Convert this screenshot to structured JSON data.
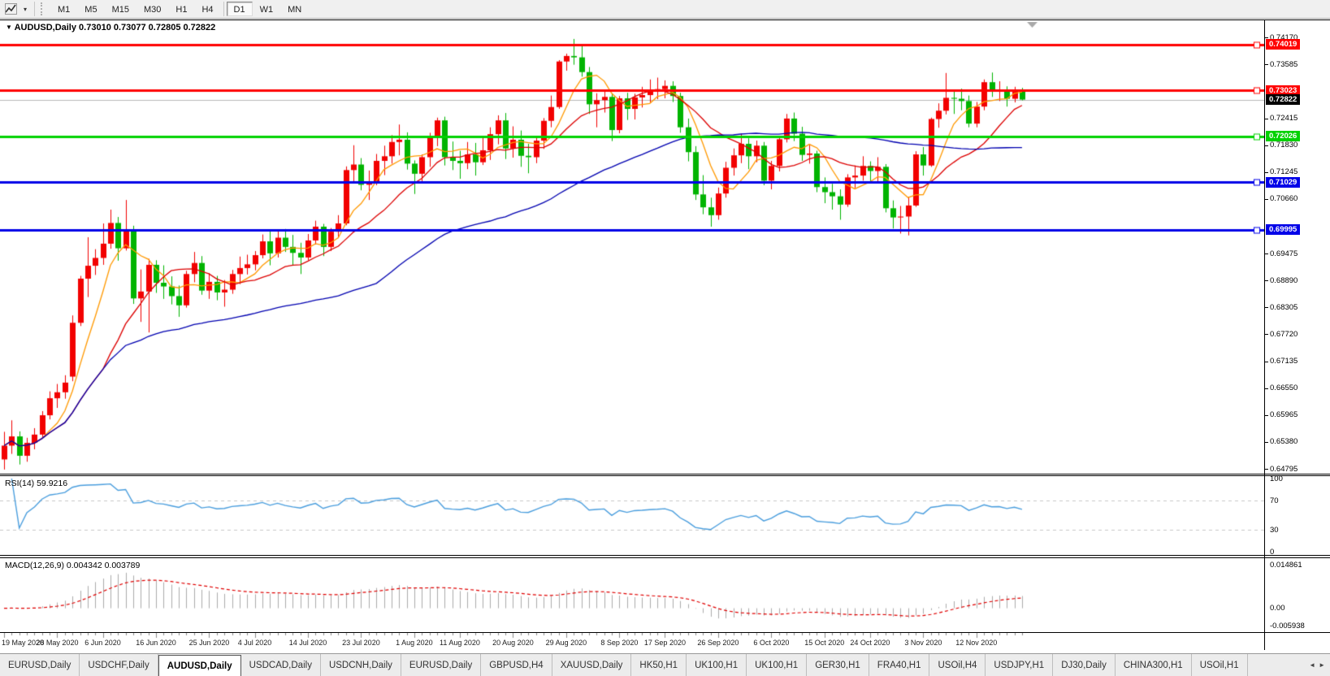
{
  "toolbar": {
    "timeframes": [
      "M1",
      "M5",
      "M15",
      "M30",
      "H1",
      "H4",
      "D1",
      "W1",
      "MN"
    ],
    "active_timeframe": "D1"
  },
  "chart": {
    "title_marker": "▼",
    "symbol_period": "AUDUSD,Daily",
    "ohlc_line": "0.73010 0.73077 0.72805 0.72822"
  },
  "rsi_panel": {
    "label": "RSI(14) 59.9216"
  },
  "macd_panel": {
    "label": "MACD(12,26,9) 0.004342 0.003789"
  },
  "chart_data": {
    "type": "candlestick",
    "instrument": "AUDUSD",
    "timeframe": "Daily",
    "up_color": "#f20000",
    "down_color": "#00b400",
    "price_range": [
      0.6469,
      0.7451
    ],
    "y_ticks": [
      0.7417,
      0.73585,
      0.72415,
      0.7183,
      0.71245,
      0.7066,
      0.69475,
      0.6889,
      0.68305,
      0.6772,
      0.67135,
      0.6655,
      0.65965,
      0.6538,
      0.64795
    ],
    "hlines": [
      {
        "price": 0.74019,
        "color": "#ff0000",
        "label": "0.74019"
      },
      {
        "price": 0.73023,
        "color": "#ff0000",
        "label": "0.73023"
      },
      {
        "price": 0.72026,
        "color": "#00d200",
        "label": "0.72026"
      },
      {
        "price": 0.71029,
        "color": "#0000e8",
        "label": "0.71029"
      },
      {
        "price": 0.69995,
        "color": "#0000e8",
        "label": "0.69995"
      }
    ],
    "current_price": {
      "price": 0.72822,
      "label": "0.72822",
      "line_color": "#b8b8b8",
      "badge_color": "#000000"
    },
    "moving_averages": [
      {
        "period": 6,
        "color": "#ff9900"
      },
      {
        "period": 14,
        "color": "#dd0000"
      },
      {
        "period": 50,
        "color": "#0000b0"
      }
    ],
    "rsi": {
      "period": 14,
      "last": 59.9216,
      "color": "#4a9ede",
      "scale": [
        {
          "v": 100,
          "label": "100"
        },
        {
          "v": 70,
          "label": "70"
        },
        {
          "v": 30,
          "label": "30"
        },
        {
          "v": 0,
          "label": "0"
        }
      ],
      "level_lines": [
        70,
        30
      ]
    },
    "macd": {
      "fast": 12,
      "slow": 26,
      "signal": 9,
      "last_main": 0.004342,
      "last_signal": 0.003789,
      "hist_color": "#ababab",
      "signal_color": "#e00000",
      "scale": [
        {
          "v": 0.014861,
          "label": "0.014861"
        },
        {
          "v": 0.0,
          "label": "0.00"
        },
        {
          "v": -0.005938,
          "label": "-0.005938"
        }
      ],
      "scale_max": 0.014861,
      "scale_min": -0.005938
    },
    "x_labels": [
      "19 May 2020",
      "28 May 2020",
      "6 Jun 2020",
      "16 Jun 2020",
      "25 Jun 2020",
      "4 Jul 2020",
      "14 Jul 2020",
      "23 Jul 2020",
      "1 Aug 2020",
      "11 Aug 2020",
      "20 Aug 2020",
      "29 Aug 2020",
      "8 Sep 2020",
      "17 Sep 2020",
      "26 Sep 2020",
      "6 Oct 2020",
      "15 Oct 2020",
      "24 Oct 2020",
      "3 Nov 2020",
      "12 Nov 2020"
    ],
    "x_label_bars": [
      0,
      7,
      13,
      20,
      27,
      33,
      40,
      47,
      54,
      60,
      67,
      74,
      81,
      87,
      94,
      101,
      108,
      114,
      121,
      128
    ],
    "ohlc": [
      [
        0.65,
        0.656,
        0.6478,
        0.653
      ],
      [
        0.653,
        0.6585,
        0.6512,
        0.655
      ],
      [
        0.655,
        0.6561,
        0.6489,
        0.6508
      ],
      [
        0.6508,
        0.6547,
        0.6495,
        0.6536
      ],
      [
        0.6536,
        0.6568,
        0.6522,
        0.6554
      ],
      [
        0.6554,
        0.6605,
        0.6548,
        0.6596
      ],
      [
        0.6596,
        0.6648,
        0.6587,
        0.6633
      ],
      [
        0.6633,
        0.6664,
        0.6612,
        0.6646
      ],
      [
        0.6646,
        0.6683,
        0.6632,
        0.6667
      ],
      [
        0.668,
        0.6813,
        0.667,
        0.6797
      ],
      [
        0.6797,
        0.6899,
        0.679,
        0.6893
      ],
      [
        0.6893,
        0.6983,
        0.6853,
        0.6921
      ],
      [
        0.6921,
        0.6957,
        0.6901,
        0.6938
      ],
      [
        0.6938,
        0.7013,
        0.6923,
        0.6969
      ],
      [
        0.6969,
        0.7043,
        0.6958,
        0.7014
      ],
      [
        0.7014,
        0.7027,
        0.6932,
        0.6959
      ],
      [
        0.6959,
        0.7064,
        0.6954,
        0.7
      ],
      [
        0.7,
        0.7008,
        0.6838,
        0.685
      ],
      [
        0.685,
        0.6913,
        0.6799,
        0.6865
      ],
      [
        0.6865,
        0.6936,
        0.6776,
        0.6923
      ],
      [
        0.6923,
        0.6933,
        0.6862,
        0.6884
      ],
      [
        0.6884,
        0.6922,
        0.6849,
        0.6876
      ],
      [
        0.6876,
        0.6898,
        0.6837,
        0.6855
      ],
      [
        0.6855,
        0.6878,
        0.681,
        0.6835
      ],
      [
        0.6835,
        0.691,
        0.683,
        0.6903
      ],
      [
        0.6903,
        0.6951,
        0.6885,
        0.6927
      ],
      [
        0.6927,
        0.6942,
        0.6858,
        0.6867
      ],
      [
        0.6867,
        0.6905,
        0.6849,
        0.6886
      ],
      [
        0.6886,
        0.6899,
        0.6846,
        0.6863
      ],
      [
        0.6863,
        0.689,
        0.6832,
        0.6869
      ],
      [
        0.6869,
        0.6912,
        0.686,
        0.6903
      ],
      [
        0.6903,
        0.6941,
        0.6881,
        0.6916
      ],
      [
        0.6916,
        0.6945,
        0.6902,
        0.6924
      ],
      [
        0.6924,
        0.6953,
        0.6911,
        0.6944
      ],
      [
        0.6944,
        0.6989,
        0.6937,
        0.6974
      ],
      [
        0.6974,
        0.6998,
        0.6922,
        0.6948
      ],
      [
        0.6948,
        0.6999,
        0.6939,
        0.6982
      ],
      [
        0.6982,
        0.7001,
        0.6951,
        0.6962
      ],
      [
        0.6962,
        0.6988,
        0.6921,
        0.6949
      ],
      [
        0.6949,
        0.6971,
        0.6903,
        0.6939
      ],
      [
        0.6939,
        0.699,
        0.6933,
        0.6976
      ],
      [
        0.6976,
        0.7019,
        0.6967,
        0.7006
      ],
      [
        0.7006,
        0.7012,
        0.6942,
        0.6962
      ],
      [
        0.6962,
        0.7003,
        0.6953,
        0.6995
      ],
      [
        0.6995,
        0.7031,
        0.6981,
        0.7013
      ],
      [
        0.7013,
        0.7137,
        0.7009,
        0.7129
      ],
      [
        0.7129,
        0.7183,
        0.7102,
        0.7141
      ],
      [
        0.7141,
        0.7155,
        0.7085,
        0.7097
      ],
      [
        0.7097,
        0.7128,
        0.7064,
        0.7104
      ],
      [
        0.7104,
        0.7164,
        0.7096,
        0.7149
      ],
      [
        0.7149,
        0.7182,
        0.7118,
        0.7159
      ],
      [
        0.7159,
        0.7205,
        0.7143,
        0.719
      ],
      [
        0.719,
        0.7228,
        0.7161,
        0.7195
      ],
      [
        0.7195,
        0.7211,
        0.713,
        0.7143
      ],
      [
        0.7143,
        0.715,
        0.7077,
        0.7121
      ],
      [
        0.7121,
        0.7163,
        0.7102,
        0.7157
      ],
      [
        0.7157,
        0.721,
        0.7136,
        0.7199
      ],
      [
        0.7199,
        0.7243,
        0.7181,
        0.7237
      ],
      [
        0.7237,
        0.7245,
        0.7139,
        0.7157
      ],
      [
        0.7157,
        0.7191,
        0.7129,
        0.7149
      ],
      [
        0.7149,
        0.7171,
        0.711,
        0.7144
      ],
      [
        0.7144,
        0.719,
        0.7131,
        0.7163
      ],
      [
        0.7163,
        0.7188,
        0.7117,
        0.7146
      ],
      [
        0.7146,
        0.72,
        0.714,
        0.7172
      ],
      [
        0.7172,
        0.7222,
        0.7151,
        0.7207
      ],
      [
        0.7207,
        0.7248,
        0.7185,
        0.7237
      ],
      [
        0.7237,
        0.7253,
        0.7153,
        0.7176
      ],
      [
        0.7176,
        0.7224,
        0.7156,
        0.7195
      ],
      [
        0.7195,
        0.7215,
        0.7136,
        0.716
      ],
      [
        0.716,
        0.7186,
        0.7122,
        0.7157
      ],
      [
        0.7157,
        0.7202,
        0.7144,
        0.7193
      ],
      [
        0.7193,
        0.7242,
        0.7175,
        0.7236
      ],
      [
        0.7236,
        0.7291,
        0.7222,
        0.7266
      ],
      [
        0.7266,
        0.7368,
        0.7262,
        0.7365
      ],
      [
        0.7365,
        0.7382,
        0.7345,
        0.7377
      ],
      [
        0.7377,
        0.7414,
        0.7358,
        0.7374
      ],
      [
        0.7374,
        0.7399,
        0.7332,
        0.7342
      ],
      [
        0.7342,
        0.7353,
        0.7251,
        0.7272
      ],
      [
        0.7272,
        0.7296,
        0.7222,
        0.7281
      ],
      [
        0.7281,
        0.7301,
        0.7254,
        0.7288
      ],
      [
        0.7288,
        0.7296,
        0.7192,
        0.7216
      ],
      [
        0.7216,
        0.729,
        0.7209,
        0.7285
      ],
      [
        0.7285,
        0.7297,
        0.7238,
        0.7262
      ],
      [
        0.7262,
        0.7295,
        0.7239,
        0.7287
      ],
      [
        0.7287,
        0.731,
        0.7265,
        0.7292
      ],
      [
        0.7292,
        0.7326,
        0.7276,
        0.7301
      ],
      [
        0.7301,
        0.733,
        0.7283,
        0.7305
      ],
      [
        0.7305,
        0.7324,
        0.7285,
        0.7312
      ],
      [
        0.7312,
        0.7322,
        0.7277,
        0.729
      ],
      [
        0.729,
        0.7297,
        0.721,
        0.7222
      ],
      [
        0.7222,
        0.7241,
        0.7148,
        0.7168
      ],
      [
        0.7168,
        0.7181,
        0.7064,
        0.7076
      ],
      [
        0.7076,
        0.7118,
        0.7033,
        0.7048
      ],
      [
        0.7048,
        0.7069,
        0.7006,
        0.7031
      ],
      [
        0.7031,
        0.7091,
        0.7021,
        0.7078
      ],
      [
        0.7078,
        0.7147,
        0.7069,
        0.7134
      ],
      [
        0.7134,
        0.7176,
        0.7117,
        0.7161
      ],
      [
        0.7161,
        0.7208,
        0.7144,
        0.7186
      ],
      [
        0.7186,
        0.7198,
        0.7131,
        0.7159
      ],
      [
        0.7159,
        0.7193,
        0.7146,
        0.7182
      ],
      [
        0.7182,
        0.719,
        0.7096,
        0.7106
      ],
      [
        0.7106,
        0.7149,
        0.7087,
        0.7138
      ],
      [
        0.7138,
        0.7203,
        0.7126,
        0.7196
      ],
      [
        0.7196,
        0.7251,
        0.7189,
        0.7241
      ],
      [
        0.7241,
        0.7254,
        0.7192,
        0.7208
      ],
      [
        0.7208,
        0.7223,
        0.7149,
        0.7162
      ],
      [
        0.7162,
        0.7184,
        0.7143,
        0.7165
      ],
      [
        0.7165,
        0.7171,
        0.7081,
        0.7092
      ],
      [
        0.7092,
        0.7113,
        0.7057,
        0.7081
      ],
      [
        0.7081,
        0.7099,
        0.7043,
        0.7072
      ],
      [
        0.7072,
        0.7087,
        0.7021,
        0.7054
      ],
      [
        0.7054,
        0.712,
        0.7049,
        0.7113
      ],
      [
        0.7113,
        0.7139,
        0.709,
        0.7117
      ],
      [
        0.7117,
        0.7159,
        0.7106,
        0.7138
      ],
      [
        0.7138,
        0.7148,
        0.7105,
        0.7127
      ],
      [
        0.7127,
        0.7157,
        0.7103,
        0.7136
      ],
      [
        0.7136,
        0.7142,
        0.7037,
        0.7046
      ],
      [
        0.7046,
        0.7063,
        0.7002,
        0.7026
      ],
      [
        0.7026,
        0.7051,
        0.6991,
        0.7028
      ],
      [
        0.7028,
        0.7071,
        0.6987,
        0.7052
      ],
      [
        0.7052,
        0.717,
        0.7049,
        0.7163
      ],
      [
        0.7163,
        0.7179,
        0.7117,
        0.7139
      ],
      [
        0.7139,
        0.7243,
        0.7136,
        0.724
      ],
      [
        0.724,
        0.7274,
        0.7221,
        0.7258
      ],
      [
        0.7258,
        0.734,
        0.725,
        0.7286
      ],
      [
        0.7286,
        0.7302,
        0.7251,
        0.7284
      ],
      [
        0.7284,
        0.7306,
        0.7259,
        0.7279
      ],
      [
        0.7279,
        0.7291,
        0.7222,
        0.723
      ],
      [
        0.723,
        0.7277,
        0.7222,
        0.7267
      ],
      [
        0.7267,
        0.7326,
        0.7259,
        0.732
      ],
      [
        0.732,
        0.7341,
        0.7288,
        0.73
      ],
      [
        0.73,
        0.7322,
        0.7279,
        0.7302
      ],
      [
        0.7302,
        0.7311,
        0.7267,
        0.7284
      ],
      [
        0.7284,
        0.731,
        0.7276,
        0.7302
      ],
      [
        0.7301,
        0.73077,
        0.72805,
        0.72822
      ]
    ]
  },
  "tabbar": {
    "tabs": [
      "EURUSD,Daily",
      "USDCHF,Daily",
      "AUDUSD,Daily",
      "USDCAD,Daily",
      "USDCNH,Daily",
      "EURUSD,Daily",
      "GBPUSD,H4",
      "XAUUSD,Daily",
      "HK50,H1",
      "UK100,H1",
      "UK100,H1",
      "GER30,H1",
      "FRA40,H1",
      "USOil,H4",
      "USDJPY,H1",
      "DJ30,Daily",
      "CHINA300,H1",
      "USOil,H1"
    ],
    "active_index": 2,
    "scroll_left": "◄",
    "scroll_right": "►"
  }
}
